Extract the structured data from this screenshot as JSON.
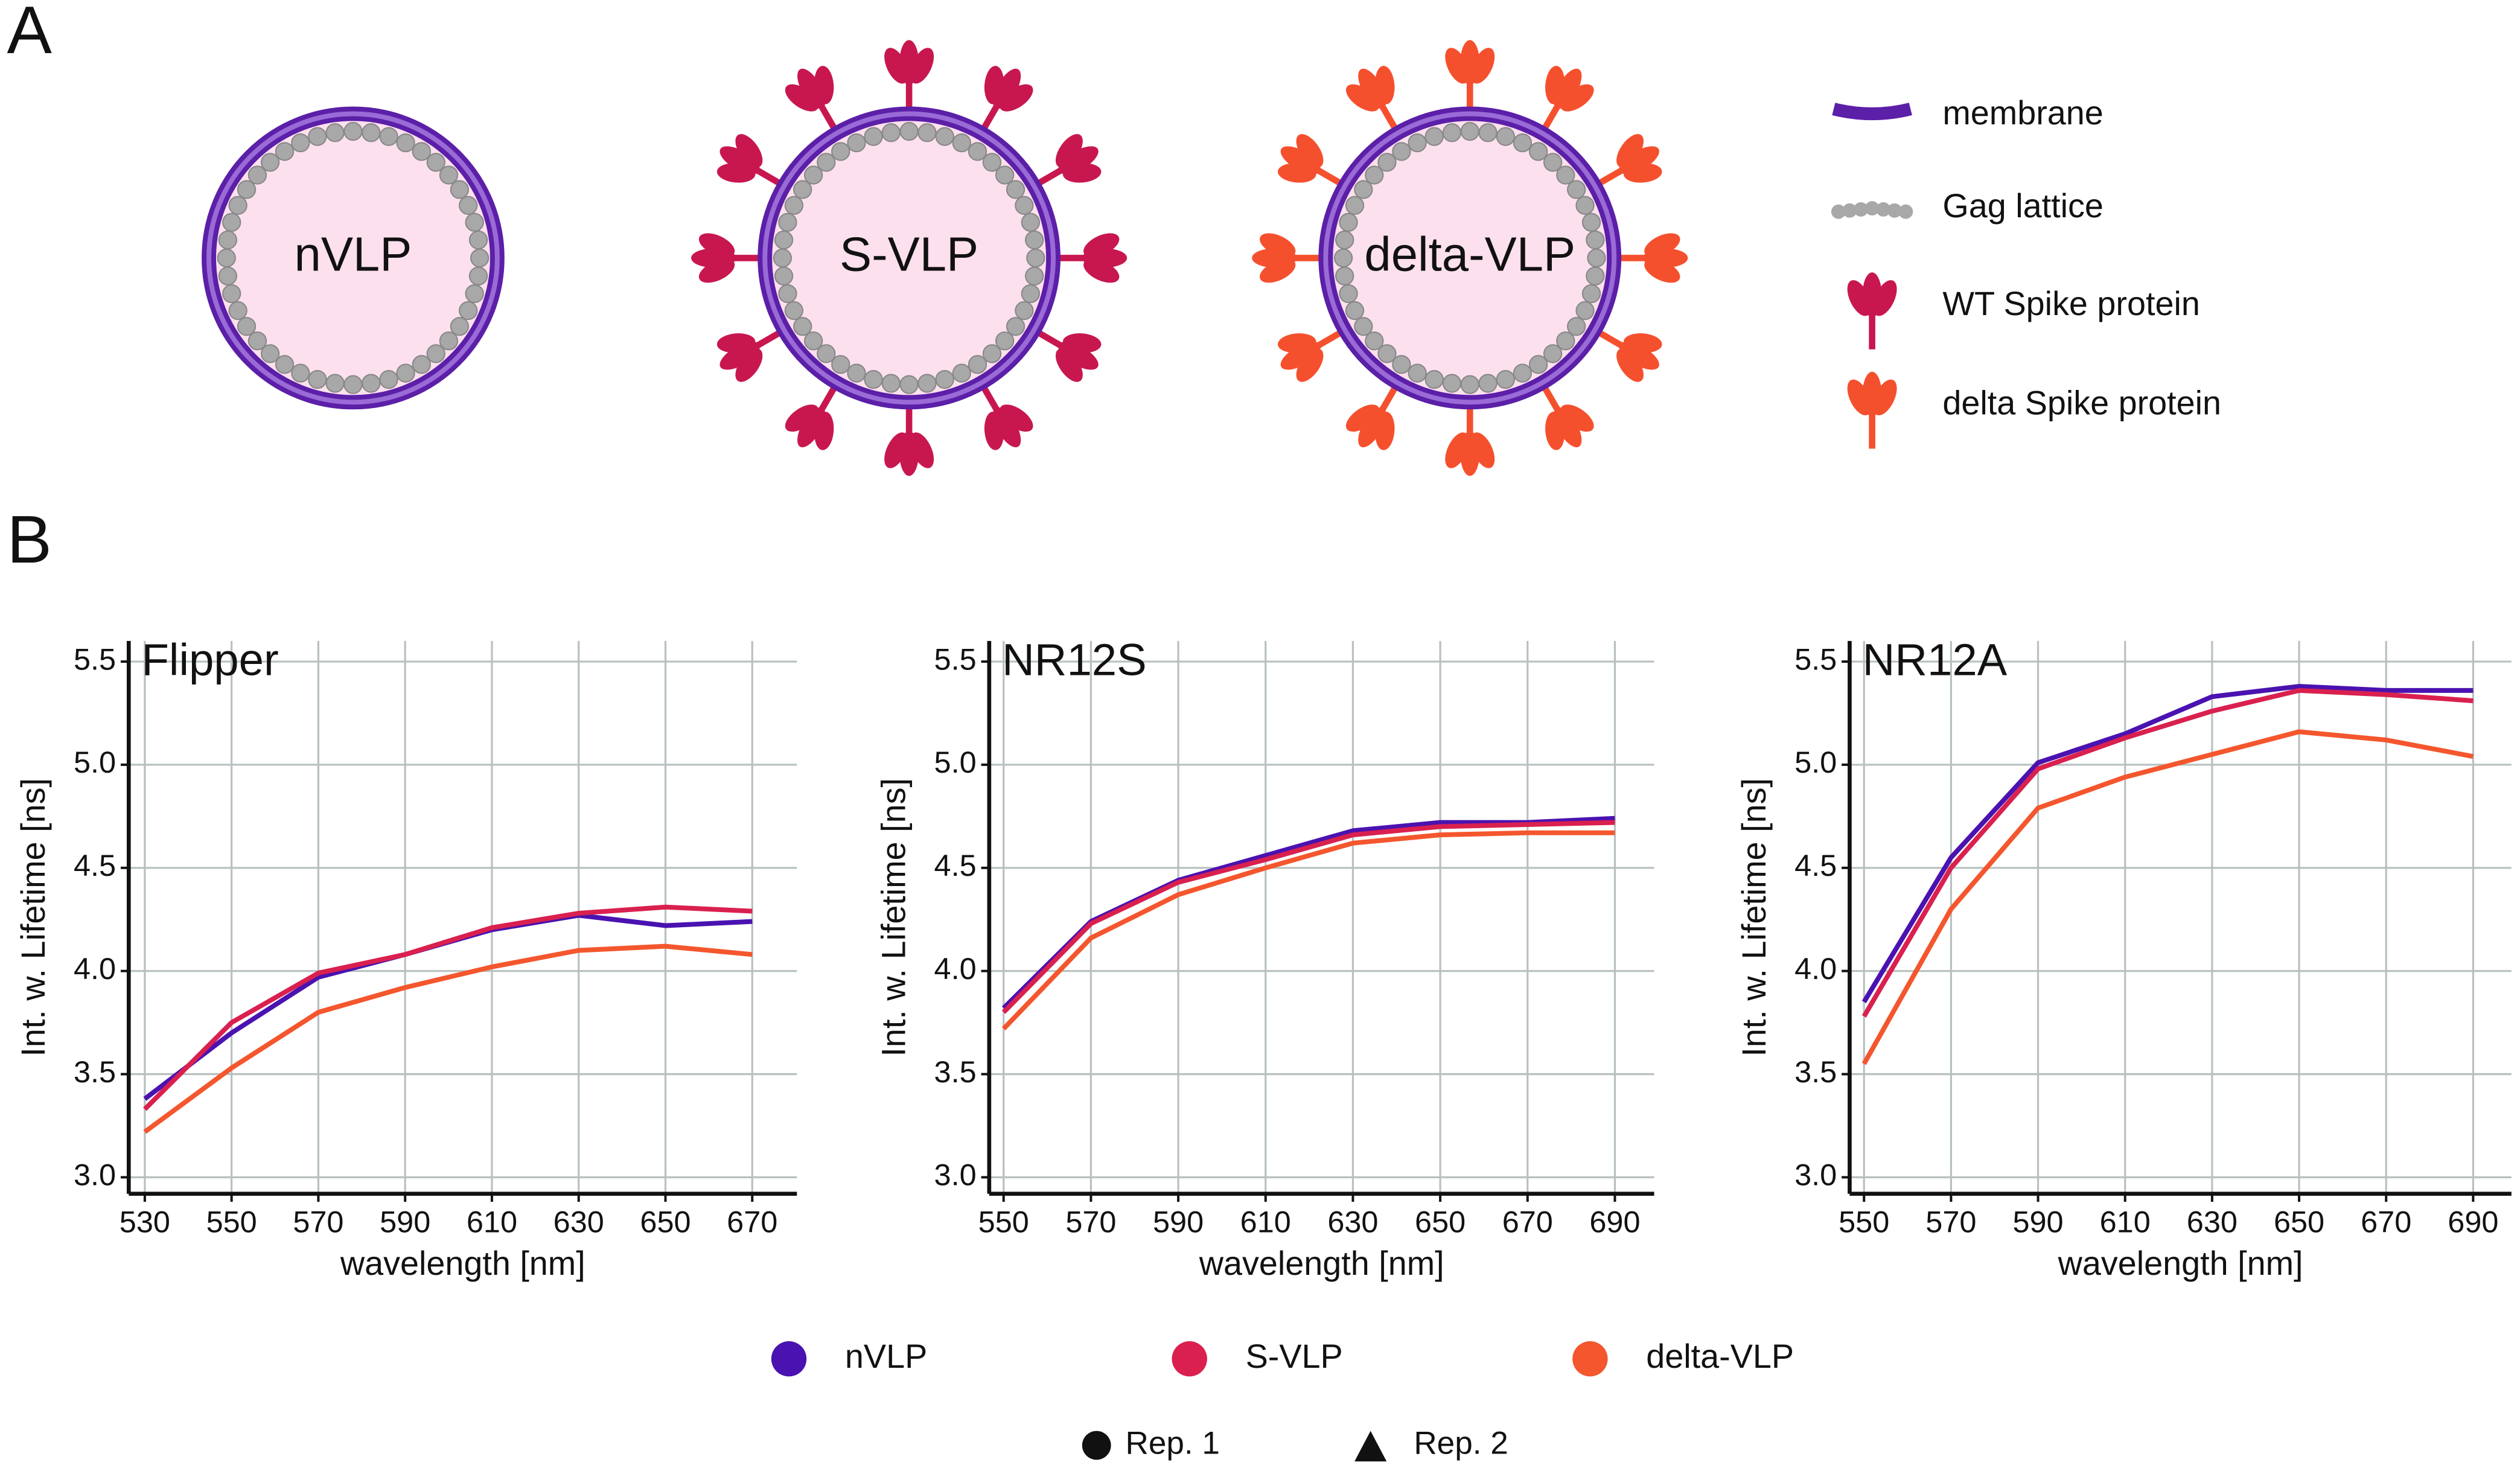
{
  "panel_labels": [
    "A",
    "B"
  ],
  "diagram": {
    "particles": [
      "nVLP",
      "S-VLP",
      "delta-VLP"
    ],
    "legend": [
      "membrane",
      "Gag lattice",
      "WT Spike protein",
      "delta Spike protein"
    ]
  },
  "replicate_legend": [
    "Rep. 1",
    "Rep. 2"
  ],
  "chart_data": [
    {
      "type": "line",
      "title": "Flipper",
      "xlabel": "wavelength [nm]",
      "ylabel": "Int. w. Lifetime [ns]",
      "grid": true,
      "x": [
        530,
        550,
        570,
        590,
        610,
        630,
        650,
        670
      ],
      "xlim": [
        526.3,
        680.3
      ],
      "xticks": [
        530,
        550,
        570,
        590,
        610,
        630,
        650,
        670
      ],
      "ylim": [
        2.92,
        5.6
      ],
      "yticks": [
        {
          "value": 3,
          "label": "3.0"
        },
        3.5,
        {
          "value": 4,
          "label": "4.0"
        },
        4.5,
        {
          "value": 5,
          "label": "5.0"
        },
        5.5
      ],
      "series": [
        {
          "name": "nVLP",
          "color": "#4a12b0",
          "values": [
            3.38,
            3.7,
            3.97,
            4.08,
            4.2,
            4.27,
            4.22,
            4.24
          ]
        },
        {
          "name": "S-VLP",
          "color": "#d9204f",
          "values": [
            3.33,
            3.75,
            3.99,
            4.08,
            4.21,
            4.28,
            4.31,
            4.29
          ]
        },
        {
          "name": "delta-VLP",
          "color": "#f4562e",
          "values": [
            3.22,
            3.53,
            3.8,
            3.92,
            4.02,
            4.1,
            4.12,
            4.08
          ]
        }
      ]
    },
    {
      "type": "line",
      "title": "NR12S",
      "xlabel": "wavelength [nm]",
      "ylabel": "Int. w. Lifetime [ns]",
      "grid": true,
      "x": [
        550,
        570,
        590,
        610,
        630,
        650,
        670,
        690
      ],
      "xlim": [
        546.7,
        699
      ],
      "xticks": [
        550,
        570,
        590,
        610,
        630,
        650,
        670,
        690
      ],
      "ylim": [
        2.92,
        5.6
      ],
      "yticks": [
        {
          "value": 3,
          "label": "3.0"
        },
        3.5,
        {
          "value": 4,
          "label": "4.0"
        },
        4.5,
        {
          "value": 5,
          "label": "5.0"
        },
        5.5
      ],
      "series": [
        {
          "name": "nVLP",
          "color": "#4a12b0",
          "values": [
            3.82,
            4.24,
            4.44,
            4.56,
            4.68,
            4.72,
            4.72,
            4.74
          ]
        },
        {
          "name": "S-VLP",
          "color": "#d9204f",
          "values": [
            3.8,
            4.23,
            4.43,
            4.54,
            4.66,
            4.7,
            4.71,
            4.72
          ]
        },
        {
          "name": "delta-VLP",
          "color": "#f4562e",
          "values": [
            3.72,
            4.16,
            4.37,
            4.5,
            4.62,
            4.66,
            4.67,
            4.67
          ]
        }
      ]
    },
    {
      "type": "line",
      "title": "NR12A",
      "xlabel": "wavelength [nm]",
      "ylabel": "Int. w. Lifetime [ns]",
      "grid": true,
      "x": [
        550,
        570,
        590,
        610,
        630,
        650,
        670,
        690
      ],
      "xlim": [
        546.7,
        698.8
      ],
      "xticks": [
        550,
        570,
        590,
        610,
        630,
        650,
        670,
        690
      ],
      "ylim": [
        2.92,
        5.6
      ],
      "yticks": [
        {
          "value": 3,
          "label": "3.0"
        },
        3.5,
        {
          "value": 4,
          "label": "4.0"
        },
        4.5,
        {
          "value": 5,
          "label": "5.0"
        },
        5.5
      ],
      "series": [
        {
          "name": "nVLP",
          "color": "#4a12b0",
          "values": [
            3.85,
            4.55,
            5.01,
            5.15,
            5.33,
            5.38,
            5.36,
            5.36
          ]
        },
        {
          "name": "S-VLP",
          "color": "#d9204f",
          "values": [
            3.78,
            4.5,
            4.98,
            5.13,
            5.26,
            5.36,
            5.34,
            5.31
          ]
        },
        {
          "name": "delta-VLP",
          "color": "#f4562e",
          "values": [
            3.55,
            4.3,
            4.79,
            4.94,
            5.05,
            5.16,
            5.12,
            5.04
          ]
        }
      ]
    }
  ]
}
